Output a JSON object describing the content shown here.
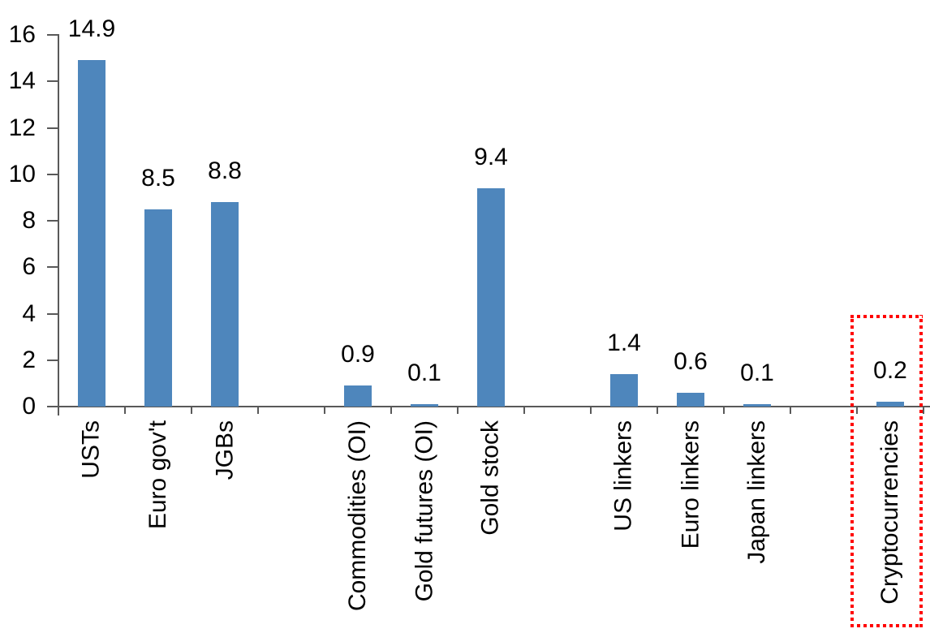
{
  "chart_data": {
    "type": "bar",
    "title": "",
    "xlabel": "",
    "ylabel": "",
    "gridlines": false,
    "legend": null,
    "bar_color": "#4E86BC",
    "axis_color": "#595959",
    "text_color": "#000000",
    "y_axis": {
      "min": 0,
      "max": 16,
      "tick_step": 2,
      "tick_labels": [
        "0",
        "2",
        "4",
        "6",
        "8",
        "10",
        "12",
        "14",
        "16"
      ]
    },
    "categories": [
      "USTs",
      "Euro gov't",
      "JGBs",
      "",
      "Commodities (OI)",
      "Gold futures (OI)",
      "Gold stock",
      "",
      "US linkers",
      "Euro linkers",
      "Japan linkers",
      "",
      "Cryptocurrencies"
    ],
    "items": [
      {
        "category": "USTs",
        "value": 14.9,
        "value_label": "14.9",
        "highlighted": false
      },
      {
        "category": "Euro gov't",
        "value": 8.5,
        "value_label": "8.5",
        "highlighted": false
      },
      {
        "category": "JGBs",
        "value": 8.8,
        "value_label": "8.8",
        "highlighted": false
      },
      {
        "category": "",
        "value": null,
        "value_label": "",
        "highlighted": false
      },
      {
        "category": "Commodities (OI)",
        "value": 0.9,
        "value_label": "0.9",
        "highlighted": false
      },
      {
        "category": "Gold futures (OI)",
        "value": 0.1,
        "value_label": "0.1",
        "highlighted": false
      },
      {
        "category": "Gold stock",
        "value": 9.4,
        "value_label": "9.4",
        "highlighted": false
      },
      {
        "category": "",
        "value": null,
        "value_label": "",
        "highlighted": false
      },
      {
        "category": "US linkers",
        "value": 1.4,
        "value_label": "1.4",
        "highlighted": false
      },
      {
        "category": "Euro linkers",
        "value": 0.6,
        "value_label": "0.6",
        "highlighted": false
      },
      {
        "category": "Japan linkers",
        "value": 0.1,
        "value_label": "0.1",
        "highlighted": false
      },
      {
        "category": "",
        "value": null,
        "value_label": "",
        "highlighted": false
      },
      {
        "category": "Cryptocurrencies",
        "value": 0.2,
        "value_label": "0.2",
        "highlighted": true
      }
    ],
    "highlight": {
      "target": "Cryptocurrencies",
      "style": "red-dotted-rectangle",
      "color": "#FF0000"
    }
  }
}
